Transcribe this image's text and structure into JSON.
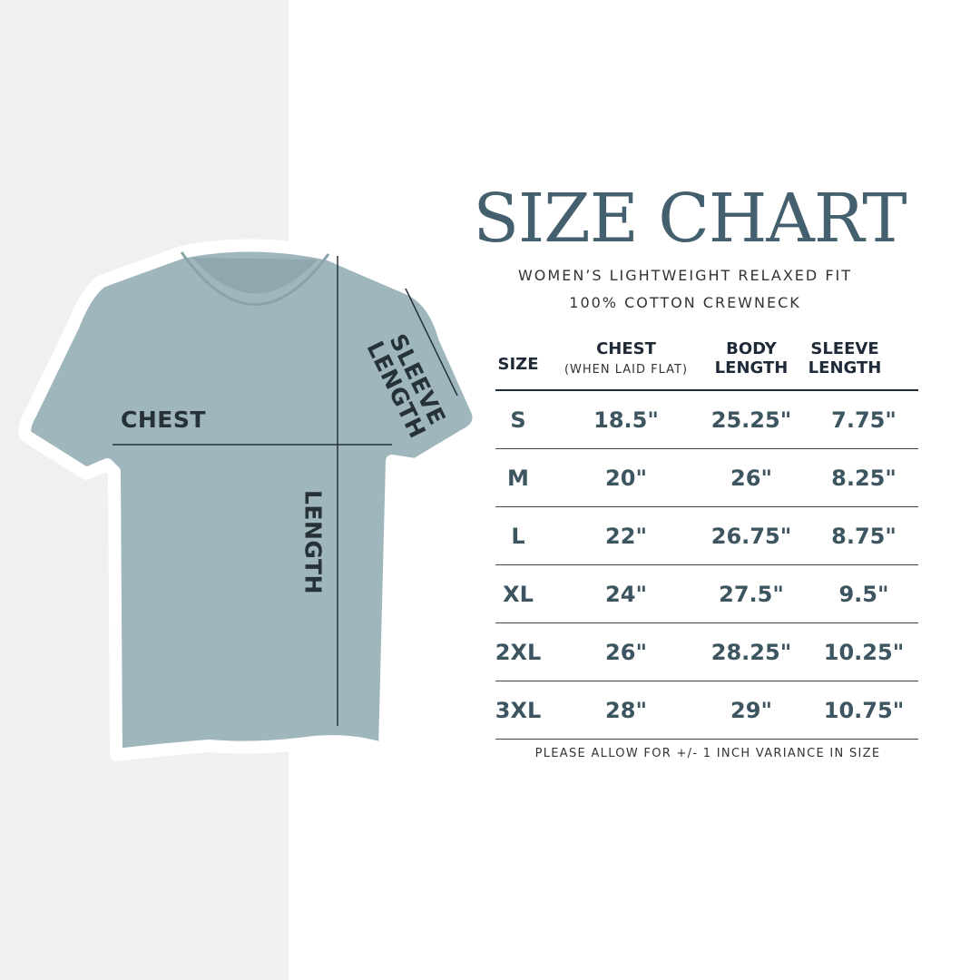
{
  "title": "SIZE CHART",
  "subtitle_line1": "WOMEN’S LIGHTWEIGHT RELAXED FIT",
  "subtitle_line2": "100% COTTON CREWNECK",
  "diagram": {
    "chest_label": "CHEST",
    "length_label": "LENGTH",
    "sleeve_label_line1": "SLEEVE",
    "sleeve_label_line2": "LENGTH",
    "shirt_color": "#9fb6bd"
  },
  "table": {
    "headers": {
      "size": "SIZE",
      "chest": "CHEST",
      "chest_note": "(WHEN LAID FLAT)",
      "body_line1": "BODY",
      "body_line2": "LENGTH",
      "sleeve_line1": "SLEEVE",
      "sleeve_line2": "LENGTH"
    },
    "rows": [
      {
        "size": "S",
        "chest": "18.5\"",
        "body": "25.25\"",
        "sleeve": "7.75\""
      },
      {
        "size": "M",
        "chest": "20\"",
        "body": "26\"",
        "sleeve": "8.25\""
      },
      {
        "size": "L",
        "chest": "22\"",
        "body": "26.75\"",
        "sleeve": "8.75\""
      },
      {
        "size": "XL",
        "chest": "24\"",
        "body": "27.5\"",
        "sleeve": "9.5\""
      },
      {
        "size": "2XL",
        "chest": "26\"",
        "body": "28.25\"",
        "sleeve": "10.25\""
      },
      {
        "size": "3XL",
        "chest": "28\"",
        "body": "29\"",
        "sleeve": "10.75\""
      }
    ]
  },
  "note": "PLEASE ALLOW FOR +/- 1 INCH VARIANCE IN SIZE"
}
